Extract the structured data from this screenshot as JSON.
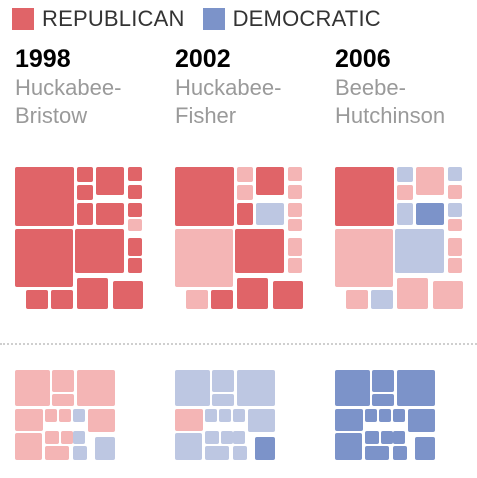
{
  "legend": {
    "republican_label": "REPUBLICAN",
    "democratic_label": "DEMOCRATIC",
    "republican_color": "#e06468",
    "democratic_color": "#7c93c9"
  },
  "colors": {
    "strong_rep": "#e06468",
    "lean_rep": "#f4b5b5",
    "lean_dem": "#bdc7e2",
    "strong_dem": "#7c93c9"
  },
  "columns": [
    {
      "year": "1998",
      "race_line1": "Huckabee-",
      "race_line2": "Bristow"
    },
    {
      "year": "2002",
      "race_line1": "Huckabee-",
      "race_line2": "Fisher"
    },
    {
      "year": "2006",
      "race_line1": "Beebe-",
      "race_line2": "Hutchinson"
    }
  ],
  "chart_data": {
    "type": "treemap",
    "rows": [
      {
        "panels": [
          {
            "year": "1998",
            "cells": [
              "strong_rep",
              "strong_rep",
              "strong_rep",
              "strong_rep",
              "strong_rep",
              "strong_rep",
              "strong_rep",
              "strong_rep",
              "strong_rep",
              "lean_rep",
              "strong_rep",
              "strong_rep",
              "strong_rep",
              "strong_rep",
              "strong_rep",
              "strong_rep",
              "strong_rep",
              "strong_rep"
            ]
          },
          {
            "year": "2002",
            "cells": [
              "strong_rep",
              "lean_rep",
              "lean_rep",
              "strong_rep",
              "lean_rep",
              "lean_rep",
              "strong_rep",
              "lean_dem",
              "lean_rep",
              "lean_rep",
              "lean_rep",
              "strong_rep",
              "lean_rep",
              "lean_rep",
              "lean_rep",
              "strong_rep",
              "strong_rep",
              "strong_rep"
            ]
          },
          {
            "year": "2006",
            "cells": [
              "strong_rep",
              "lean_dem",
              "lean_rep",
              "lean_rep",
              "lean_dem",
              "lean_rep",
              "lean_dem",
              "strong_dem",
              "lean_dem",
              "lean_rep",
              "lean_rep",
              "lean_dem",
              "lean_rep",
              "lean_rep",
              "lean_rep",
              "lean_dem",
              "lean_rep",
              "lean_rep"
            ]
          }
        ]
      },
      {
        "panels": [
          {
            "year": "1998",
            "cells": [
              "lean_rep",
              "lean_rep",
              "lean_rep",
              "lean_rep",
              "lean_rep",
              "lean_rep",
              "lean_rep",
              "lean_dem",
              "lean_rep",
              "lean_rep",
              "lean_rep",
              "lean_rep",
              "lean_dem",
              "lean_rep",
              "lean_dem",
              "lean_dem"
            ]
          },
          {
            "year": "2002",
            "cells": [
              "lean_dem",
              "lean_dem",
              "lean_dem",
              "lean_dem",
              "lean_rep",
              "lean_dem",
              "lean_dem",
              "lean_dem",
              "lean_dem",
              "lean_dem",
              "lean_dem",
              "lean_dem",
              "lean_dem",
              "lean_dem",
              "lean_dem",
              "strong_dem"
            ]
          },
          {
            "year": "2006",
            "cells": [
              "strong_dem",
              "strong_dem",
              "strong_dem",
              "strong_dem",
              "strong_dem",
              "strong_dem",
              "strong_dem",
              "strong_dem",
              "strong_dem",
              "strong_dem",
              "strong_dem",
              "strong_dem",
              "strong_dem",
              "strong_dem",
              "strong_dem",
              "strong_dem"
            ]
          }
        ]
      }
    ]
  }
}
